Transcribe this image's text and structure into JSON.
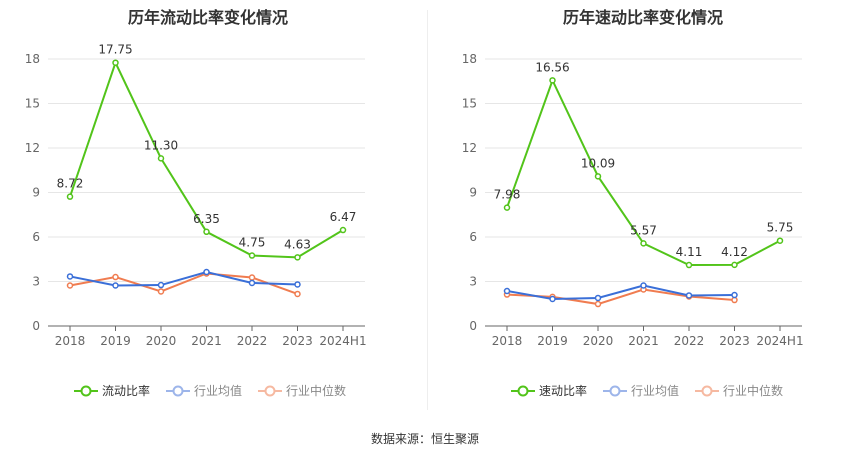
{
  "source": "数据来源：恒生聚源",
  "chart_data": [
    {
      "type": "line",
      "title": "历年流动比率变化情况",
      "categories": [
        "2018",
        "2019",
        "2020",
        "2021",
        "2022",
        "2023",
        "2024H1"
      ],
      "ylim": [
        0,
        18
      ],
      "yticks": [
        0,
        3,
        6,
        9,
        12,
        15,
        18
      ],
      "grid": true,
      "legend": "bottom",
      "series": [
        {
          "name": "流动比率",
          "color": "#52c41a",
          "values": [
            8.72,
            17.75,
            11.3,
            6.35,
            4.75,
            4.63,
            6.47
          ],
          "labels": [
            "8.72",
            "17.75",
            "11.30",
            "6.35",
            "4.75",
            "4.63",
            "6.47"
          ]
        },
        {
          "name": "行业均值",
          "color": "#3a6fd8",
          "legend_color": "#9db5ea",
          "values": [
            3.34,
            2.73,
            2.76,
            3.64,
            2.9,
            2.8,
            null
          ]
        },
        {
          "name": "行业中位数",
          "color": "#f07c50",
          "legend_color": "#f6b9a1",
          "values": [
            2.73,
            3.3,
            2.33,
            3.54,
            3.27,
            2.16,
            null
          ]
        }
      ]
    },
    {
      "type": "line",
      "title": "历年速动比率变化情况",
      "categories": [
        "2018",
        "2019",
        "2020",
        "2021",
        "2022",
        "2023",
        "2024H1"
      ],
      "ylim": [
        0,
        18
      ],
      "yticks": [
        0,
        3,
        6,
        9,
        12,
        15,
        18
      ],
      "grid": true,
      "legend": "bottom",
      "series": [
        {
          "name": "速动比率",
          "color": "#52c41a",
          "values": [
            7.98,
            16.56,
            10.09,
            5.57,
            4.11,
            4.12,
            5.75
          ],
          "labels": [
            "7.98",
            "16.56",
            "10.09",
            "5.57",
            "4.11",
            "4.12",
            "5.75"
          ]
        },
        {
          "name": "行业均值",
          "color": "#3a6fd8",
          "legend_color": "#9db5ea",
          "values": [
            2.36,
            1.82,
            1.89,
            2.73,
            2.06,
            2.09,
            null
          ]
        },
        {
          "name": "行业中位数",
          "color": "#f07c50",
          "legend_color": "#f6b9a1",
          "values": [
            2.12,
            1.96,
            1.48,
            2.46,
            1.99,
            1.75,
            null
          ]
        }
      ]
    }
  ]
}
